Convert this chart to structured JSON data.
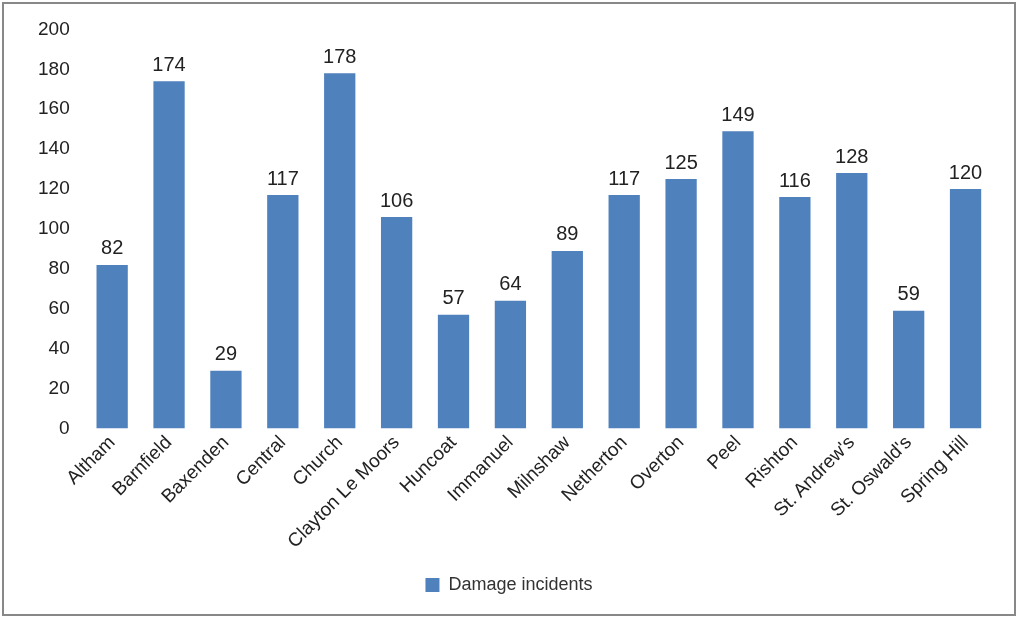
{
  "chart_data": {
    "type": "bar",
    "categories": [
      "Altham",
      "Barnfield",
      "Baxenden",
      "Central",
      "Church",
      "Clayton Le Moors",
      "Huncoat",
      "Immanuel",
      "Milnshaw",
      "Netherton",
      "Overton",
      "Peel",
      "Rishton",
      "St. Andrew's",
      "St. Oswald's",
      "Spring Hill"
    ],
    "series": [
      {
        "name": "Damage incidents",
        "color": "#4f81bd",
        "values": [
          82,
          174,
          29,
          117,
          178,
          106,
          57,
          64,
          89,
          117,
          125,
          149,
          116,
          128,
          59,
          120
        ]
      }
    ],
    "ylim": [
      0,
      200
    ],
    "yticks": [
      0,
      20,
      40,
      60,
      80,
      100,
      120,
      140,
      160,
      180,
      200
    ],
    "grid": false,
    "legend": "bottom",
    "data_labels": true
  }
}
